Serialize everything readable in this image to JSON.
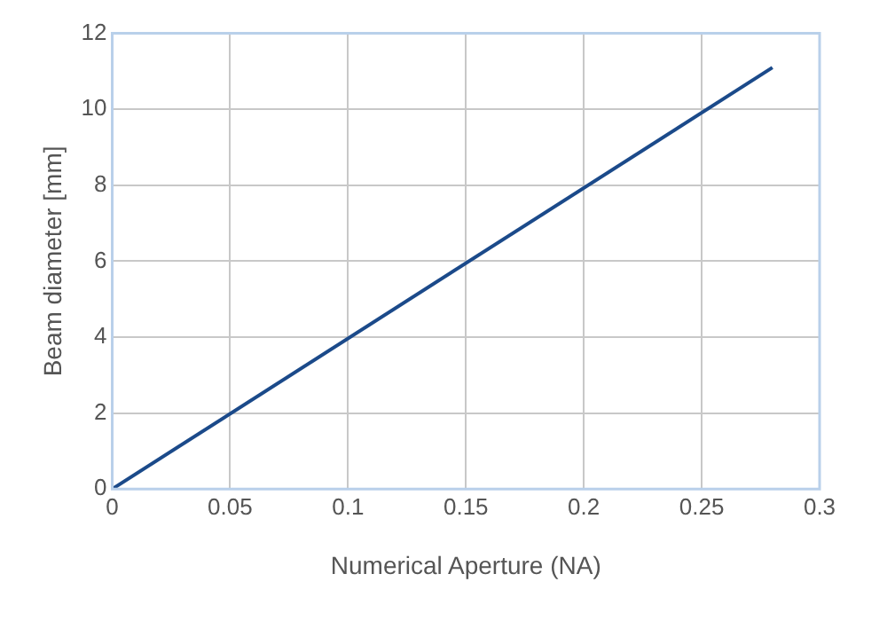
{
  "chart_data": {
    "type": "line",
    "xlabel": "Numerical Aperture (NA)",
    "ylabel": "Beam diameter [mm]",
    "series": [
      {
        "color": "#1b4a8a",
        "x": [
          0,
          0.28
        ],
        "values": [
          0,
          11.1
        ]
      }
    ],
    "xlim": [
      0,
      0.3
    ],
    "xticks": [
      0,
      0.05,
      0.1,
      0.15,
      0.2,
      0.25,
      0.3
    ],
    "ylim": [
      0,
      12
    ],
    "yticks": [
      0,
      2,
      4,
      6,
      8,
      10,
      12
    ],
    "grid": true,
    "marker": "none",
    "line_style": "solid"
  }
}
